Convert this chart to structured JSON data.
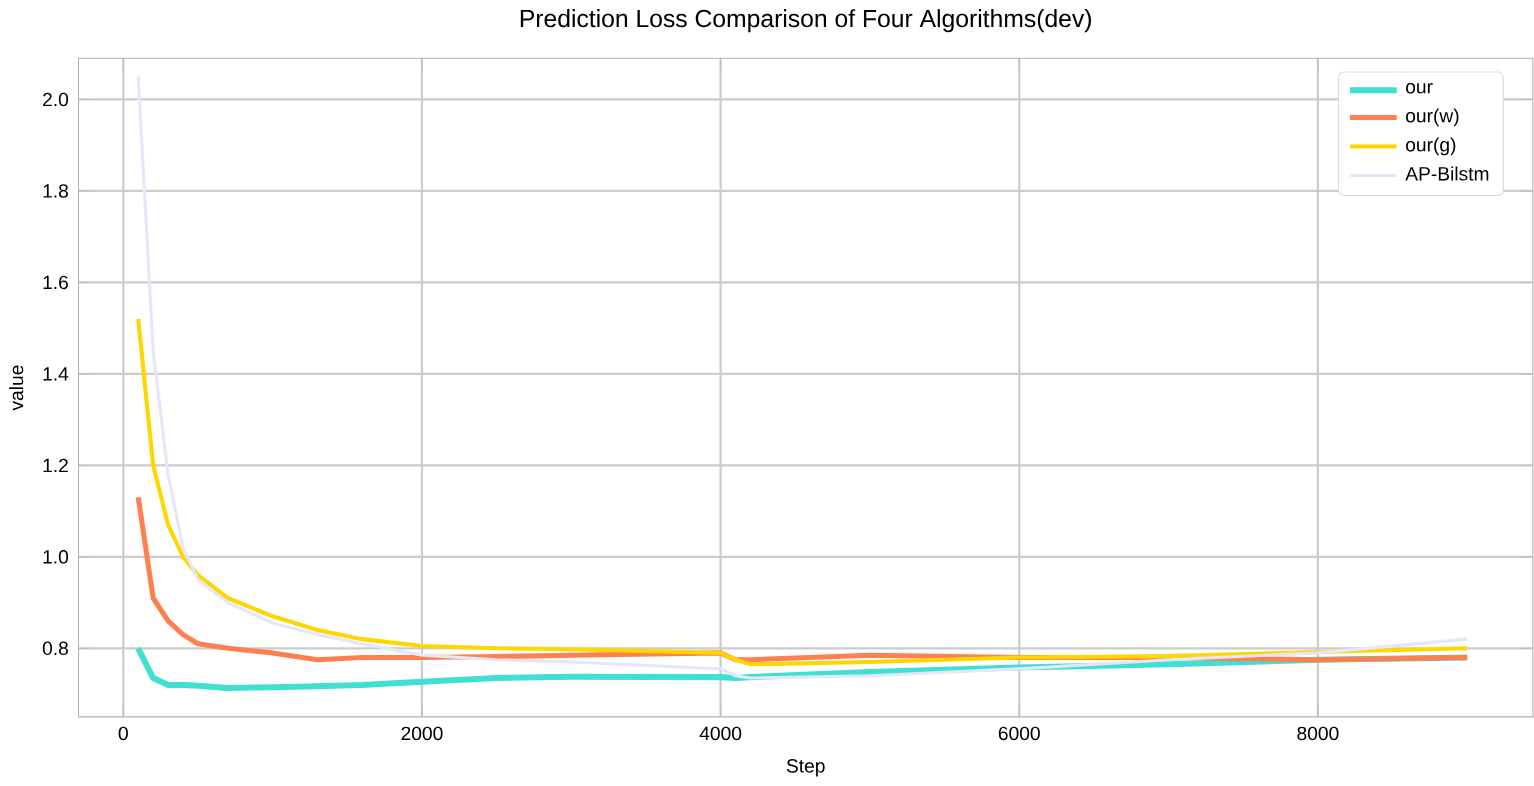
{
  "chart_data": {
    "type": "line",
    "title": "Prediction Loss Comparison of Four Algorithms(dev)",
    "xlabel": "Step",
    "ylabel": "value",
    "x": [
      100,
      200,
      300,
      400,
      500,
      700,
      1000,
      1300,
      1600,
      2000,
      2500,
      3000,
      4000,
      4100,
      4200,
      5000,
      6000,
      7000,
      8000,
      9000
    ],
    "series": [
      {
        "name": "our",
        "color": "#40e0d0",
        "values": [
          0.8,
          0.735,
          0.72,
          0.72,
          0.718,
          0.713,
          0.715,
          0.717,
          0.72,
          0.727,
          0.735,
          0.738,
          0.737,
          0.735,
          0.737,
          0.748,
          0.758,
          0.765,
          0.775,
          0.78
        ]
      },
      {
        "name": "our(w)",
        "color": "#ff7f50",
        "values": [
          1.13,
          0.91,
          0.86,
          0.83,
          0.81,
          0.8,
          0.79,
          0.775,
          0.78,
          0.78,
          0.782,
          0.785,
          0.79,
          0.775,
          0.775,
          0.785,
          0.78,
          0.78,
          0.775,
          0.78
        ]
      },
      {
        "name": "our(g)",
        "color": "#ffd700",
        "values": [
          1.52,
          1.2,
          1.07,
          1.0,
          0.96,
          0.91,
          0.87,
          0.84,
          0.82,
          0.805,
          0.8,
          0.798,
          0.79,
          0.775,
          0.765,
          0.77,
          0.78,
          0.783,
          0.792,
          0.8
        ]
      },
      {
        "name": "AP-Bilstm",
        "color": "#e6e6fa",
        "values": [
          2.05,
          1.45,
          1.18,
          1.02,
          0.95,
          0.9,
          0.855,
          0.83,
          0.81,
          0.785,
          0.775,
          0.77,
          0.755,
          0.74,
          0.735,
          0.74,
          0.755,
          0.775,
          0.79,
          0.82
        ]
      }
    ],
    "xlim": [
      -300,
      9440
    ],
    "ylim": [
      0.65,
      2.09
    ],
    "xticks": [
      0,
      2000,
      4000,
      6000,
      8000
    ],
    "yticks": [
      0.8,
      {
        "value": 1,
        "label": "1.0"
      },
      1.2,
      1.4,
      1.6,
      1.8,
      {
        "value": 2,
        "label": "2.0"
      }
    ],
    "grid": true,
    "legend": "top right",
    "marker": "none",
    "line_style": "solid"
  }
}
